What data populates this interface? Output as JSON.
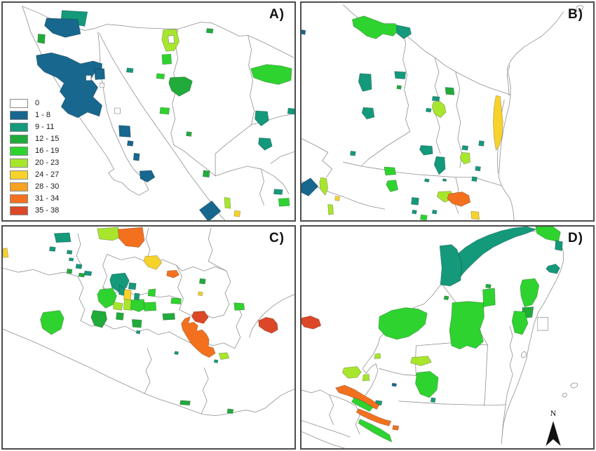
{
  "figure": {
    "panels": [
      {
        "id": "A",
        "label": "A)"
      },
      {
        "id": "B",
        "label": "B)"
      },
      {
        "id": "C",
        "label": "C)"
      },
      {
        "id": "D",
        "label": "D)"
      }
    ],
    "legend": {
      "items": [
        {
          "label": "0",
          "color": "#ffffff"
        },
        {
          "label": "1 - 8",
          "color": "#17678e"
        },
        {
          "label": "9 - 11",
          "color": "#14997b"
        },
        {
          "label": "12 - 15",
          "color": "#21ab3b"
        },
        {
          "label": "16 - 19",
          "color": "#2ed32f"
        },
        {
          "label": "20 - 23",
          "color": "#a8e62e"
        },
        {
          "label": "24 - 27",
          "color": "#f7d22b"
        },
        {
          "label": "28 - 30",
          "color": "#f7a220"
        },
        {
          "label": "31 - 34",
          "color": "#f3711e"
        },
        {
          "label": "35 - 38",
          "color": "#dc4727"
        }
      ]
    },
    "north_arrow": {
      "label": "N"
    }
  },
  "map_data": {
    "panels": [
      {
        "id": "A",
        "boundaries": [
          "M28,5 L50,14 75,26 100,34 118,40 132,37 150,31 172,33 195,36 220,37 252,38 268,33 285,28 300,29 320,38 340,48 353,47 375,57 395,67 419,79",
          "M28,5 L34,22 40,42 50,62 62,88 78,115 92,138 108,162 122,182 136,202 150,222 160,240 152,246 160,256 172,260 182,270 196,278 210,270 202,254 188,240 178,224 168,202 158,180 150,156 146,132 142,108 140,84 139,60 137,42",
          "M139,44 L148,62 160,84 172,104 186,126 200,148 214,168 228,188 242,208 256,228 268,246 280,262 292,278 304,294 314,308 320,314",
          "M252,38 L248,58 252,80 246,102 250,124 244,146 248,168 242,188 246,205",
          "M246,205 L262,215 278,228 294,240 306,250",
          "M353,47 L358,68 354,90 360,112 356,134 362,156 358,176",
          "M358,176 L380,170 400,164 420,160",
          "M358,176 L340,190 322,204 306,218 306,250",
          "M306,250 L330,242 352,236 372,240 390,250 404,262 412,276",
          "M372,240 L376,258 370,276 376,292",
          "M420,215 L400,222 386,232"
        ],
        "patches": [
          [
            2,
            "85,11 122,13 118,34 96,30 84,24"
          ],
          [
            1,
            "63,22 108,24 112,45 90,50 72,44 60,33"
          ],
          [
            3,
            "51,45 61,46 60,59 50,57"
          ],
          [
            1,
            "48,76 70,72 92,78 112,88 130,84 143,88 142,104 134,98 127,110 137,122 130,136 143,148 139,164 122,158 108,166 94,160 84,150 90,138 82,128 88,116 78,108 60,100 50,90"
          ],
          [
            1,
            "132,96 146,95 147,110 133,111"
          ],
          [
            2,
            "179,94 188,95 187,101 178,100"
          ],
          [
            5,
            "231,39 250,38 254,56 247,69 235,70 229,54"
          ],
          [
            0,
            "238,48 246,47 247,58 239,58"
          ],
          [
            4,
            "229,75 242,74 243,88 230,89"
          ],
          [
            4,
            "222,102 233,103 232,110 221,109"
          ],
          [
            3,
            "241,108 262,107 273,113 269,127 254,135 243,127 239,116"
          ],
          [
            4,
            "227,151 240,152 239,161 226,160"
          ],
          [
            3,
            "265,186 272,187 271,193 264,192"
          ],
          [
            4,
            "357,95 380,89 401,91 416,95 415,112 397,118 377,114 361,108"
          ],
          [
            3,
            "294,37 303,38 302,44 293,43"
          ],
          [
            2,
            "364,156 381,157 383,170 372,178 363,168"
          ],
          [
            2,
            "411,152 420,153 420,161 410,160"
          ],
          [
            2,
            "369,195 385,196 388,207 377,213 368,204"
          ],
          [
            1,
            "167,177 183,178 184,194 168,193"
          ],
          [
            1,
            "180,199 188,200 187,207 179,206"
          ],
          [
            1,
            "189,217 197,218 196,228 188,227"
          ],
          [
            1,
            "197,243 214,242 219,252 208,259 198,254"
          ],
          [
            3,
            "289,242 298,243 297,252 288,251"
          ],
          [
            1,
            "283,299 301,286 314,301 296,316"
          ],
          [
            5,
            "319,281 327,282 328,297 320,296"
          ],
          [
            6,
            "334,300 342,301 341,309 333,308"
          ],
          [
            4,
            "397,283 412,282 413,293 398,294"
          ],
          [
            2,
            "391,269 403,270 402,277 390,276"
          ],
          [
            0,
            "120,105 127,105 127,112 120,112"
          ],
          [
            0,
            "140,116 146,116 146,122 140,122"
          ],
          [
            0,
            "161,152 169,152 169,160 161,160"
          ]
        ]
      },
      {
        "id": "B",
        "boundaries": [
          "M60,3 L72,14 84,24 98,30 112,37 126,31 140,37 152,48 164,58 178,70 192,79 206,90 221,99 238,108 256,117 274,124 290,129 301,133",
          "M377,13 L368,26 357,38 346,48 333,56 320,64 309,74 301,84 296,95 299,108 301,120 301,133 299,148 295,164 291,182 288,200 286,218 285,236 284,252 288,264 294,274 300,282 303,292 305,302 306,314",
          "M300,90 L296,104 298,120 299,134",
          "M292,140 L288,160 285,182 283,204 282,226 283,246",
          "M146,38 L150,60 146,82 152,104 148,126 154,148 150,168 156,186",
          "M192,80 L198,100 192,120 198,140 193,160 199,180 194,200 200,218",
          "M222,100 L228,124 223,148 229,172 225,196 231,218 228,238",
          "M60,230 L86,236 112,240 140,245 168,248 196,250 222,252 248,252",
          "M0,196 L20,206 38,216 30,228 44,240 36,252",
          "M0,258 L22,266 42,274 60,280",
          "M60,280 L80,288 100,294 120,298",
          "M156,186 L140,196 124,206 110,216 96,226 86,236",
          "M222,252 L226,270 220,288 226,304",
          "M248,252 L268,258 288,264",
          "M396,6 C402,2 408,4 404,10 C400,14 394,12 396,6"
        ],
        "patches": [
          [
            4,
            "73,24 90,19 106,25 119,30 135,30 141,38 132,48 117,45 107,52 94,48 84,40 75,34"
          ],
          [
            2,
            "137,32 156,36 158,45 147,52 137,44"
          ],
          [
            2,
            "84,102 100,103 101,125 88,128 82,114"
          ],
          [
            2,
            "134,99 150,100 149,110 135,109"
          ],
          [
            3,
            "207,122 219,123 220,133 208,132"
          ],
          [
            2,
            "189,135 199,136 198,142 188,141"
          ],
          [
            5,
            "190,143 199,142 206,148 208,158 200,166 191,160 188,150"
          ],
          [
            2,
            "180,152 187,153 186,158 179,157"
          ],
          [
            2,
            "89,151 103,152 105,165 94,168 87,159"
          ],
          [
            2,
            "71,214 78,215 77,221 70,220"
          ],
          [
            2,
            "172,206 188,207 189,218 176,220 170,212"
          ],
          [
            2,
            "194,222 206,223 207,240 198,248 191,234"
          ],
          [
            2,
            "232,206 240,207 239,213 231,212"
          ],
          [
            2,
            "256,199 263,200 262,207 255,206"
          ],
          [
            5,
            "231,216 242,217 243,230 234,233 228,224"
          ],
          [
            6,
            "280,134 286,135 288,152 290,172 289,192 285,206 280,213 277,194 276,172 277,152"
          ],
          [
            2,
            "251,236 258,237 257,243 250,242"
          ],
          [
            2,
            "246,251 253,252 252,258 245,257"
          ],
          [
            1,
            "0,261 13,253 24,265 10,279 0,274"
          ],
          [
            5,
            "28,252 36,254 38,268 34,278 27,269 26,259"
          ],
          [
            6,
            "49,279 55,280 54,286 48,285"
          ],
          [
            5,
            "38,291 45,292 46,305 39,306"
          ],
          [
            4,
            "119,237 134,238 136,248 121,249"
          ],
          [
            4,
            "124,257 136,256 139,270 128,273 122,263"
          ],
          [
            2,
            "159,281 169,282 168,292 158,291"
          ],
          [
            5,
            "197,273 215,272 220,282 206,288 195,280"
          ],
          [
            8,
            "212,276 231,273 241,278 243,288 230,294 217,290 210,283"
          ],
          [
            6,
            "244,301 255,302 256,313 245,312"
          ],
          [
            4,
            "172,306 181,307 180,314 171,313"
          ],
          [
            2,
            "178,254 184,255 183,259 177,258"
          ],
          [
            2,
            "204,254 209,255 208,258 203,257"
          ],
          [
            2,
            "160,299 166,300 165,305 159,304"
          ],
          [
            2,
            "189,299 195,300 194,305 188,304"
          ],
          [
            1,
            "0,39 6,40 5,46 0,45"
          ],
          [
            3,
            "138,119 144,120 143,125 137,124"
          ]
        ]
      },
      {
        "id": "C",
        "boundaries": [
          "M0,148 L24,158 48,168 74,180 100,192 126,204 152,217 178,229 204,241 224,249 246,256 268,264 288,271 306,273 320,271 334,268 350,265 364,268 378,262 390,252 400,244 412,238 420,235",
          "M420,98 L404,105 390,114 377,125 367,136 359,148 355,160",
          "M0,60 L22,66 44,62 66,70 88,66 108,72",
          "M108,72 L116,88 110,104 118,120 112,136",
          "M150,40 L170,48 190,44 210,52 230,48 250,56",
          "M250,56 L258,72 252,88 260,104 254,120",
          "M150,40 L144,56 150,72 144,88 150,104",
          "M144,88 L160,96 176,92 192,100 208,96 224,102 240,100 254,104",
          "M254,120 L270,128 286,124 302,132 318,128",
          "M318,128 L326,112 320,96 328,80 322,64",
          "M322,64 L306,58 290,64 274,58 258,64 250,56",
          "M112,136 L128,144 144,140 160,148 176,144 192,152 208,148 224,156 240,152 254,160",
          "M254,160 L270,168 286,164 302,172 318,168 334,176",
          "M334,176 L342,160 336,144 344,128 338,112",
          "M204,241 L212,224 206,208 214,192 208,176",
          "M286,270 L294,252 288,236 296,220 290,204",
          "M108,10 L112,26 106,42 114,58",
          "M210,2 L206,18 212,34 206,50",
          "M300,2 L296,18 302,34 296,50",
          "M296,50 L310,58 322,64"
        ],
        "patches": [
          [
            2,
            "74,10 96,9 98,22 77,23"
          ],
          [
            5,
            "136,3 166,1 171,15 158,20 139,18"
          ],
          [
            8,
            "166,4 201,1 204,20 196,30 177,28 167,17"
          ],
          [
            6,
            "0,32 6,31 8,44 1,45"
          ],
          [
            2,
            "68,29 76,30 75,36 67,35"
          ],
          [
            2,
            "93,34 100,35 99,40 92,39"
          ],
          [
            2,
            "96,45 102,46 101,50 95,49"
          ],
          [
            2,
            "106,54 114,55 113,61 105,60"
          ],
          [
            2,
            "118,64 128,65 127,71 117,70"
          ],
          [
            3,
            "93,61 100,62 99,68 92,67"
          ],
          [
            3,
            "110,67 118,68 117,73 109,72"
          ],
          [
            6,
            "205,43 222,42 229,52 221,62 209,58 203,50"
          ],
          [
            8,
            "237,64 250,63 254,70 246,74 236,71"
          ],
          [
            3,
            "284,75 292,76 291,83 283,82"
          ],
          [
            2,
            "157,69 176,67 182,78 178,88 168,95 157,88 154,77"
          ],
          [
            2,
            "168,84 178,92 176,100 167,98"
          ],
          [
            2,
            "182,81 192,82 191,91 181,90"
          ],
          [
            4,
            "140,91 158,89 164,100 160,112 148,118 138,108 136,98"
          ],
          [
            5,
            "159,109 173,111 171,121 159,119"
          ],
          [
            6,
            "175,91 185,92 184,106 174,105"
          ],
          [
            5,
            "175,105 187,106 186,121 174,120"
          ],
          [
            4,
            "185,106 203,105 206,118 196,123 184,119"
          ],
          [
            4,
            "203,110 220,109 221,121 204,122"
          ],
          [
            4,
            "210,91 220,90 219,101 209,100"
          ],
          [
            2,
            "190,96 197,97 196,106 189,105"
          ],
          [
            3,
            "130,121 148,123 150,134 143,146 132,143 127,131"
          ],
          [
            4,
            "58,124 82,121 88,132 84,148 70,156 57,147 54,134"
          ],
          [
            3,
            "164,124 174,125 173,135 163,134"
          ],
          [
            3,
            "186,134 200,135 199,146 187,145"
          ],
          [
            4,
            "243,103 257,104 256,112 242,111"
          ],
          [
            3,
            "230,126 247,125 248,134 231,135"
          ],
          [
            9,
            "275,123 290,122 296,131 289,140 277,137 272,130"
          ],
          [
            8,
            "262,133 270,130 267,140 275,138 281,143 279,151 287,149 293,155 297,163 296,173 303,175 306,183 297,189 287,184 279,177 271,169 265,159 259,149 257,140"
          ],
          [
            5,
            "311,183 323,182 326,190 314,192"
          ],
          [
            9,
            "368,136 379,131 389,133 395,140 396,149 387,154 377,150 369,144"
          ],
          [
            4,
            "333,110 347,111 348,120 334,121"
          ],
          [
            6,
            "282,94 288,95 287,100 281,99"
          ],
          [
            3,
            "256,251 270,252 269,258 255,257"
          ],
          [
            3,
            "324,263 332,264 331,270 323,269"
          ],
          [
            2,
            "248,180 253,181 252,185 247,184"
          ],
          [
            2,
            "193,150 198,151 197,155 192,154"
          ],
          [
            2,
            "305,192 310,193 309,197 304,196"
          ]
        ]
      },
      {
        "id": "D",
        "boundaries": [
          "M113,160 L125,148 138,136 152,124 164,116 176,112 188,100 197,88 206,79 216,70 228,58 243,46 258,35 274,25 290,16 306,10 322,7 338,7 352,10 364,16 373,24 377,36 377,50 373,64 366,79 358,94 350,109 341,124 335,140 331,157 327,174 324,191 318,209 312,226 306,241 300,255 295,269 291,284 289,300 288,314",
          "M0,236 L14,240 27,236 40,243 53,247 66,252 76,258 85,252 93,242 100,232 106,220 110,208 107,198 99,204 93,212 88,205 96,194 104,183 110,171 113,160",
          "M165,172 L190,170 215,168 240,170 268,171",
          "M200,80 L212,96 224,112 236,126 248,140 258,154 264,164 268,171",
          "M268,171 L267,190 266,210 265,230 264,248 263,258",
          "M140,252 L170,254 200,256 232,257 263,258",
          "M263,258 L280,258 294,257",
          "M294,257 L292,272 290,288 289,302",
          "M300,144 L304,158 300,172 304,186 300,200 304,214 300,228 296,242 294,256",
          "M0,280 L18,286 36,292 54,298 70,304",
          "M40,243 L46,258 40,272 46,286",
          "M78,258 L84,272 78,286 84,300",
          "M112,205 L130,210 148,214 165,215",
          "M165,215 L164,195 165,172",
          "M0,296 L16,303 32,310 48,316 62,320",
          "M318,182 C322,178 326,184 322,188 C318,192 314,186 318,182",
          "M388,228 C394,224 400,226 396,231 C392,235 386,232 388,228",
          "M376,242 C380,239 384,241 381,245 C378,248 374,245 376,242"
        ],
        "patches": [
          [
            2,
            "222,42 236,30 252,20 270,12 288,6 306,2 324,0 338,4 324,10 308,15 292,22 276,30 261,40 248,52 236,64 226,76 216,84 214,70 216,55"
          ],
          [
            2,
            "199,28 216,26 224,33 231,55 229,78 214,86 200,84 202,60"
          ],
          [
            4,
            "337,0 362,0 373,8 370,22 352,18 339,10"
          ],
          [
            2,
            "366,20 376,22 375,35 365,33"
          ],
          [
            2,
            "355,57 366,54 372,60 368,68 357,66 352,61"
          ],
          [
            4,
            "318,77 336,75 342,85 339,101 332,113 321,116 316,100 315,87"
          ],
          [
            3,
            "318,117 334,116 332,131 318,132"
          ],
          [
            4,
            "306,122 322,123 326,140 318,156 307,153 303,137"
          ],
          [
            0,
            "340,131 355,131 355,150 340,150"
          ],
          [
            4,
            "112,130 130,121 150,117 168,119 181,125 178,141 167,151 154,159 137,163 121,158 111,147"
          ],
          [
            4,
            "217,110 240,108 262,110 263,131 257,148 262,166 251,176 238,172 228,177 216,172 213,150 216,130"
          ],
          [
            4,
            "261,91 278,89 279,113 262,116"
          ],
          [
            3,
            "266,83 273,84 272,89 265,88"
          ],
          [
            3,
            "206,100 212,101 211,106 205,105"
          ],
          [
            5,
            "106,184 113,183 114,190 105,191"
          ],
          [
            5,
            "159,189 182,187 187,196 172,201 157,197"
          ],
          [
            5,
            "61,204 80,202 86,210 80,218 67,219 59,211"
          ],
          [
            5,
            "89,214 97,213 98,222 88,223"
          ],
          [
            4,
            "166,211 185,209 197,218 195,236 184,247 171,242 164,227"
          ],
          [
            2,
            "187,247 193,248 192,254 186,253"
          ],
          [
            2,
            "107,251 116,252 115,258 106,257"
          ],
          [
            1,
            "131,226 137,227 136,231 130,230"
          ],
          [
            8,
            "49,233 62,229 76,235 89,243 101,250 112,258 108,264 95,257 81,250 67,244 54,240"
          ],
          [
            4,
            "76,247 90,253 103,261 98,267 84,260 72,253"
          ],
          [
            8,
            "82,263 95,268 108,274 121,279 129,281 126,288 112,284 97,278 85,272 79,268"
          ],
          [
            4,
            "84,278 100,285 115,293 127,301 130,311 119,306 104,298 91,290 82,284"
          ],
          [
            8,
            "132,287 140,288 139,294 131,293"
          ],
          [
            9,
            "0,132 13,129 25,134 28,143 17,148 4,145 0,140"
          ]
        ]
      }
    ]
  }
}
